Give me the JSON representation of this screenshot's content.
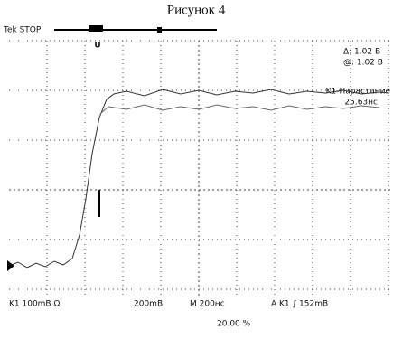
{
  "caption": "Рисунок 4",
  "screen": {
    "status": "Tek STOP",
    "cursor_readouts": [
      "Δ: 1.02 B",
      "@: 1.02 B"
    ],
    "measurement": {
      "label": "K1-Нарастание",
      "value": "25.63нс"
    },
    "footer": {
      "channel": "K1   100mB Ω",
      "channel2": "200mB",
      "timebase": "M 200нс",
      "trigger": "A  K1  ∫  152mB",
      "position": "20.00 %"
    }
  }
}
